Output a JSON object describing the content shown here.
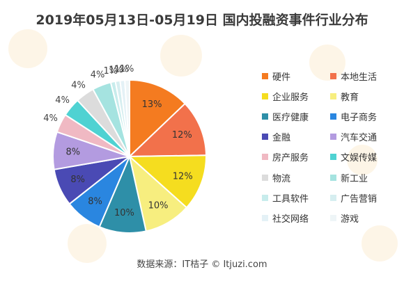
{
  "title": "2019年05月13日-05月19日 国内投融资事件行业分布",
  "source": "数据来源：IT桔子 © Itjuzi.com",
  "watermark_text": "IT桔子",
  "chart_data": {
    "type": "pie",
    "title": "2019年05月13日-05月19日 国内投融资事件行业分布",
    "start": "12 o'clock, clockwise",
    "legend_position": "right",
    "slices": [
      {
        "name": "硬件",
        "value": 13,
        "label": "13%",
        "color": "#f47b20"
      },
      {
        "name": "本地生活",
        "value": 12,
        "label": "12%",
        "color": "#f2714b"
      },
      {
        "name": "企业服务",
        "value": 12,
        "label": "12%",
        "color": "#f5dd1f"
      },
      {
        "name": "教育",
        "value": 10,
        "label": "10%",
        "color": "#f7ee7f"
      },
      {
        "name": "医疗健康",
        "value": 10,
        "label": "10%",
        "color": "#2e8fa8"
      },
      {
        "name": "电子商务",
        "value": 8,
        "label": "8%",
        "color": "#2a86e0"
      },
      {
        "name": "金融",
        "value": 8,
        "label": "8%",
        "color": "#4a4ab4"
      },
      {
        "name": "汽车交通",
        "value": 8,
        "label": "8%",
        "color": "#b39be0"
      },
      {
        "name": "房产服务",
        "value": 4,
        "label": "4%",
        "color": "#f0b9c3"
      },
      {
        "name": "文娱传媒",
        "value": 4,
        "label": "4%",
        "color": "#4fd2d2"
      },
      {
        "name": "物流",
        "value": 4,
        "label": "4%",
        "color": "#dcdcdc"
      },
      {
        "name": "新工业",
        "value": 4,
        "label": "4%",
        "color": "#a5e3e0"
      },
      {
        "name": "工具软件",
        "value": 1,
        "label": "1%",
        "color": "#c7ecec"
      },
      {
        "name": "广告营销",
        "value": 1,
        "label": "1%",
        "color": "#d6eef0"
      },
      {
        "name": "社交网络",
        "value": 1,
        "label": "1%",
        "color": "#e4f1f6"
      },
      {
        "name": "游戏",
        "value": 1,
        "label": "1%",
        "color": "#eef5f7"
      }
    ]
  }
}
